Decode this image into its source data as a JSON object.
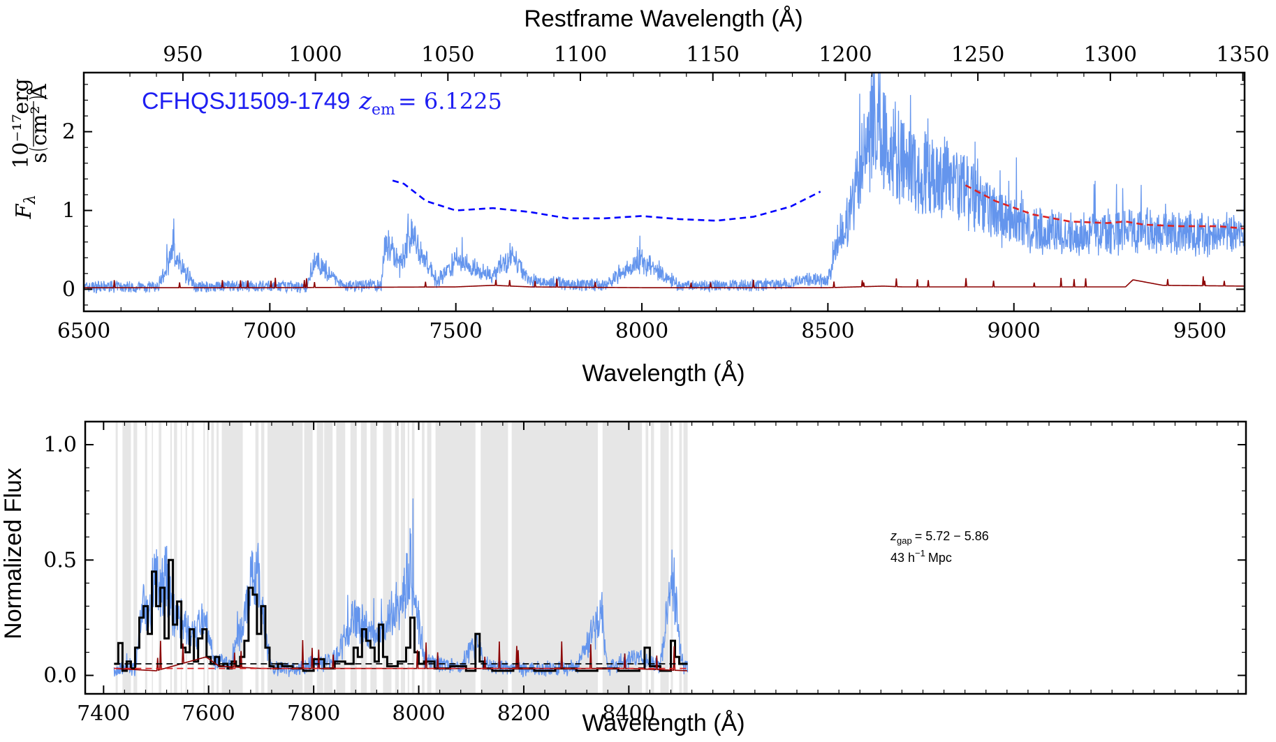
{
  "chart_data": [
    {
      "type": "line",
      "object_label": "CFHQSJ1509-1749",
      "redshift_label": "z",
      "redshift_subscript": "em",
      "redshift_value": "= 6.1225",
      "xlabel": "Wavelength (Å)",
      "xlabel_top": "Restframe Wavelength (Å)",
      "ylabel_main": "F",
      "ylabel_sub": "λ",
      "ylabel_unit_num": "10⁻¹⁷erg",
      "ylabel_unit_den": "s cm² Å",
      "xlim": [
        6500,
        9620
      ],
      "ylim": [
        -0.28,
        2.75
      ],
      "xticks": [
        6500,
        7000,
        7500,
        8000,
        8500,
        9000,
        9500
      ],
      "xtick_labels": [
        "6500",
        "7000",
        "7500",
        "8000",
        "8500",
        "9000",
        "9500"
      ],
      "yticks": [
        0,
        1,
        2
      ],
      "ytick_labels": [
        "0",
        "1",
        "2"
      ],
      "top_ticks": [
        950,
        1000,
        1050,
        1100,
        1150,
        1200,
        1250,
        1300,
        1350
      ],
      "top_tick_labels": [
        "950",
        "1000",
        "1050",
        "1100",
        "1150",
        "1200",
        "1250",
        "1300",
        "1350"
      ],
      "redshift": 6.1225,
      "series": [
        {
          "role": "flux",
          "color": "#6495ed",
          "x": [
            6500,
            6600,
            6700,
            6740,
            6800,
            6900,
            7000,
            7100,
            7120,
            7200,
            7300,
            7310,
            7350,
            7380,
            7450,
            7500,
            7550,
            7600,
            7650,
            7700,
            7800,
            7900,
            8000,
            8100,
            8200,
            8300,
            8400,
            8450,
            8500,
            8530,
            8560,
            8580,
            8600,
            8620,
            8640,
            8660,
            8700,
            8750,
            8800,
            8850,
            8900,
            8950,
            9000,
            9050,
            9100,
            9200,
            9300,
            9350,
            9400,
            9500,
            9620
          ],
          "y": [
            0.03,
            0.04,
            0.03,
            0.55,
            0.03,
            0.05,
            0.04,
            0.03,
            0.42,
            0.05,
            0.06,
            0.75,
            0.35,
            0.82,
            0.12,
            0.45,
            0.3,
            0.18,
            0.52,
            0.12,
            0.08,
            0.06,
            0.42,
            0.06,
            0.05,
            0.06,
            0.08,
            0.15,
            0.12,
            0.8,
            1.1,
            1.6,
            2.05,
            2.45,
            2.55,
            2.1,
            1.9,
            1.72,
            1.75,
            1.6,
            1.3,
            1.1,
            1.0,
            0.9,
            0.86,
            0.83,
            0.85,
            0.88,
            0.83,
            0.82,
            0.8
          ]
        },
        {
          "role": "error",
          "color": "#8b0000",
          "x": [
            6500,
            7000,
            7500,
            7600,
            7700,
            8000,
            8500,
            8650,
            8700,
            9000,
            9300,
            9320,
            9400,
            9620
          ],
          "y": [
            0.02,
            0.02,
            0.03,
            0.05,
            0.03,
            0.02,
            0.02,
            0.04,
            0.03,
            0.03,
            0.03,
            0.12,
            0.05,
            0.04
          ]
        },
        {
          "role": "continuum fit",
          "color": "#dd2222",
          "style": "dashed",
          "x": [
            8870,
            8950,
            9050,
            9150,
            9250,
            9300,
            9350,
            9450,
            9550,
            9620
          ],
          "y": [
            1.32,
            1.12,
            0.95,
            0.86,
            0.84,
            0.86,
            0.82,
            0.8,
            0.8,
            0.77
          ]
        },
        {
          "role": "continuum extrapolation",
          "color": "#0000ff",
          "style": "dashed",
          "x": [
            7330,
            7360,
            7420,
            7500,
            7600,
            7700,
            7800,
            7900,
            8000,
            8100,
            8200,
            8300,
            8400,
            8480
          ],
          "y": [
            1.38,
            1.34,
            1.12,
            1.0,
            1.03,
            0.98,
            0.9,
            0.9,
            0.93,
            0.89,
            0.87,
            0.92,
            1.05,
            1.24
          ]
        }
      ]
    },
    {
      "type": "line",
      "xlabel": "Wavelength (Å)",
      "ylabel": "Normalized Flux",
      "xlim": [
        7365,
        9575
      ],
      "ylim": [
        -0.08,
        1.1
      ],
      "xticks": [
        7400,
        7600,
        7800,
        8000,
        8200,
        8400
      ],
      "xtick_labels": [
        "7400",
        "7600",
        "7800",
        "8000",
        "8200",
        "8400"
      ],
      "yticks": [
        0,
        0.5,
        1.0
      ],
      "ytick_labels": [
        "0.0",
        "0.5",
        "1.0"
      ],
      "annotation_line1": "z",
      "annotation_line1_sub": "gap",
      "annotation_line1_val": "= 5.72 − 5.86",
      "annotation_line2": "43 h",
      "annotation_line2_sup": "−1",
      "annotation_line2_unit": "Mpc",
      "shaded_color": "#e6e6e6",
      "shaded_regions": [
        [
          7423,
          7427
        ],
        [
          7436,
          7452
        ],
        [
          7457,
          7464
        ],
        [
          7479,
          7483
        ],
        [
          7492,
          7494
        ],
        [
          7505,
          7510
        ],
        [
          7527,
          7530
        ],
        [
          7534,
          7540
        ],
        [
          7547,
          7549
        ],
        [
          7556,
          7559
        ],
        [
          7568,
          7572
        ],
        [
          7590,
          7593
        ],
        [
          7597,
          7600
        ],
        [
          7605,
          7610
        ],
        [
          7615,
          7619
        ],
        [
          7625,
          7665
        ],
        [
          7689,
          7695
        ],
        [
          7700,
          7706
        ],
        [
          7712,
          7779
        ],
        [
          7782,
          7798
        ],
        [
          7806,
          7818
        ],
        [
          7820,
          7836
        ],
        [
          7843,
          7860
        ],
        [
          7870,
          7882
        ],
        [
          7890,
          7901
        ],
        [
          7908,
          7920
        ],
        [
          7932,
          7948
        ],
        [
          7955,
          7962
        ],
        [
          7966,
          7974
        ],
        [
          7979,
          7982
        ],
        [
          7987,
          7992
        ],
        [
          8006,
          8011
        ],
        [
          8016,
          8024
        ],
        [
          8032,
          8108
        ],
        [
          8118,
          8170
        ],
        [
          8177,
          8341
        ],
        [
          8350,
          8425
        ],
        [
          8432,
          8437
        ],
        [
          8442,
          8448
        ],
        [
          8460,
          8476
        ],
        [
          8480,
          8484
        ],
        [
          8496,
          8501
        ],
        [
          8504,
          8512
        ]
      ],
      "series": [
        {
          "role": "flux",
          "color": "#6495ed",
          "x": [
            7420,
            7440,
            7460,
            7475,
            7487,
            7497,
            7507,
            7520,
            7535,
            7550,
            7575,
            7590,
            7610,
            7640,
            7670,
            7683,
            7695,
            7705,
            7720,
            7760,
            7800,
            7840,
            7880,
            7920,
            7960,
            7985,
            7998,
            8010,
            8040,
            8080,
            8110,
            8125,
            8200,
            8300,
            8348,
            8360,
            8420,
            8438,
            8460,
            8483,
            8500,
            8512
          ],
          "y": [
            0.02,
            0.05,
            0.03,
            0.35,
            0.25,
            0.55,
            0.42,
            0.5,
            0.3,
            0.28,
            0.2,
            0.3,
            0.08,
            0.06,
            0.3,
            0.6,
            0.5,
            0.25,
            0.04,
            0.03,
            0.06,
            0.08,
            0.3,
            0.18,
            0.35,
            0.55,
            0.3,
            0.08,
            0.06,
            0.04,
            0.18,
            0.05,
            0.03,
            0.04,
            0.3,
            0.04,
            0.1,
            0.06,
            0.05,
            0.55,
            0.06,
            0.04
          ]
        },
        {
          "role": "binned flux",
          "color": "#000000",
          "steps": true,
          "x": [
            7420,
            7428,
            7436,
            7444,
            7452,
            7460,
            7468,
            7476,
            7484,
            7492,
            7500,
            7508,
            7516,
            7524,
            7532,
            7540,
            7548,
            7556,
            7564,
            7572,
            7580,
            7588,
            7596,
            7604,
            7612,
            7620,
            7628,
            7636,
            7644,
            7652,
            7660,
            7668,
            7676,
            7684,
            7692,
            7700,
            7708,
            7716,
            7724,
            7732,
            7740,
            7760,
            7780,
            7800,
            7820,
            7840,
            7860,
            7876,
            7884,
            7892,
            7900,
            7908,
            7916,
            7924,
            7932,
            7940,
            7960,
            7976,
            7984,
            7992,
            8000,
            8010,
            8030,
            8060,
            8090,
            8108,
            8116,
            8124,
            8140,
            8180,
            8220,
            8260,
            8300,
            8340,
            8380,
            8420,
            8430,
            8440,
            8460,
            8480,
            8488,
            8496,
            8512
          ],
          "y": [
            0.05,
            0.14,
            0.02,
            0.06,
            0.03,
            0.12,
            0.25,
            0.3,
            0.18,
            0.45,
            0.3,
            0.38,
            0.16,
            0.5,
            0.22,
            0.32,
            0.12,
            0.1,
            0.2,
            0.06,
            0.16,
            0.2,
            0.08,
            0.05,
            0.08,
            0.04,
            0.05,
            0.03,
            0.06,
            0.04,
            0.08,
            0.15,
            0.38,
            0.35,
            0.18,
            0.3,
            0.12,
            0.04,
            0.03,
            0.05,
            0.04,
            0.03,
            0.02,
            0.07,
            0.03,
            0.06,
            0.05,
            0.12,
            0.08,
            0.2,
            0.15,
            0.12,
            0.06,
            0.22,
            0.08,
            0.04,
            0.06,
            0.12,
            0.25,
            0.1,
            0.05,
            0.06,
            0.03,
            0.04,
            0.02,
            0.18,
            0.06,
            0.03,
            0.02,
            0.03,
            0.02,
            0.03,
            0.02,
            0.03,
            0.02,
            0.03,
            0.12,
            0.04,
            0.02,
            0.15,
            0.08,
            0.05,
            0.03
          ]
        },
        {
          "role": "error",
          "color": "#8b0000",
          "x": [
            7420,
            7500,
            7595,
            7620,
            7700,
            7800,
            8000,
            8200,
            8400,
            8512
          ],
          "y": [
            0.03,
            0.02,
            0.08,
            0.04,
            0.03,
            0.03,
            0.03,
            0.03,
            0.03,
            0.02
          ]
        },
        {
          "role": "threshold",
          "color": "#000000",
          "style": "dashed",
          "x": [
            7420,
            8512
          ],
          "y": [
            0.05,
            0.05
          ]
        },
        {
          "role": "threshold",
          "color": "#dd2222",
          "style": "dashed",
          "x": [
            7420,
            8512
          ],
          "y": [
            0.03,
            0.03
          ]
        }
      ]
    }
  ]
}
